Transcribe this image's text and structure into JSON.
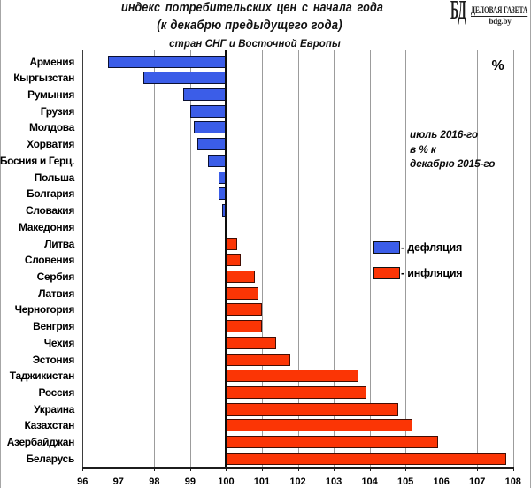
{
  "header": {
    "title_line1": "индекс потребительских цен с начала года",
    "title_line2": "(к декабрю предыдущего года)",
    "title_line3": "стран СНГ и Восточной Европы"
  },
  "logo": {
    "monogram": "БД",
    "name": "ДЕЛОВАЯ ГАЗЕТА",
    "site": "bdg.by"
  },
  "chart_data": {
    "type": "bar",
    "orientation": "horizontal",
    "title": "индекс потребительских цен с начала года (к декабрю предыдущего года) стран СНГ и Восточной Европы",
    "unit_label": "%",
    "baseline": 100,
    "xlim": [
      96,
      108.45
    ],
    "x_ticks": [
      96,
      97,
      98,
      99,
      100,
      101,
      102,
      103,
      104,
      105,
      106,
      107,
      108
    ],
    "grid": true,
    "categories": [
      "Армения",
      "Кыргызстан",
      "Румыния",
      "Грузия",
      "Молдова",
      "Хорватия",
      "Босния и Герц.",
      "Польша",
      "Болгария",
      "Словакия",
      "Македония",
      "Литва",
      "Словения",
      "Сербия",
      "Латвия",
      "Черногория",
      "Венгрия",
      "Чехия",
      "Эстония",
      "Таджикистан",
      "Россия",
      "Украина",
      "Казахстан",
      "Азербайджан",
      "Беларусь"
    ],
    "values": [
      96.7,
      97.7,
      98.8,
      99.0,
      99.1,
      99.2,
      99.5,
      99.8,
      99.8,
      99.9,
      100.0,
      100.3,
      100.4,
      100.8,
      100.9,
      101.0,
      101.0,
      101.4,
      101.8,
      103.7,
      103.9,
      104.8,
      105.2,
      105.9,
      107.8
    ],
    "colors": {
      "deflation_fill": "#3b5de8",
      "inflation_fill": "#fb3505",
      "zero_fill": "#0d0d0d"
    },
    "legend": [
      {
        "key": "deflation",
        "label": "- дефляция"
      },
      {
        "key": "inflation",
        "label": "- инфляция"
      }
    ],
    "annotation_lines": [
      "июль 2016-го",
      "в % к",
      "декабрю 2015-го"
    ]
  }
}
